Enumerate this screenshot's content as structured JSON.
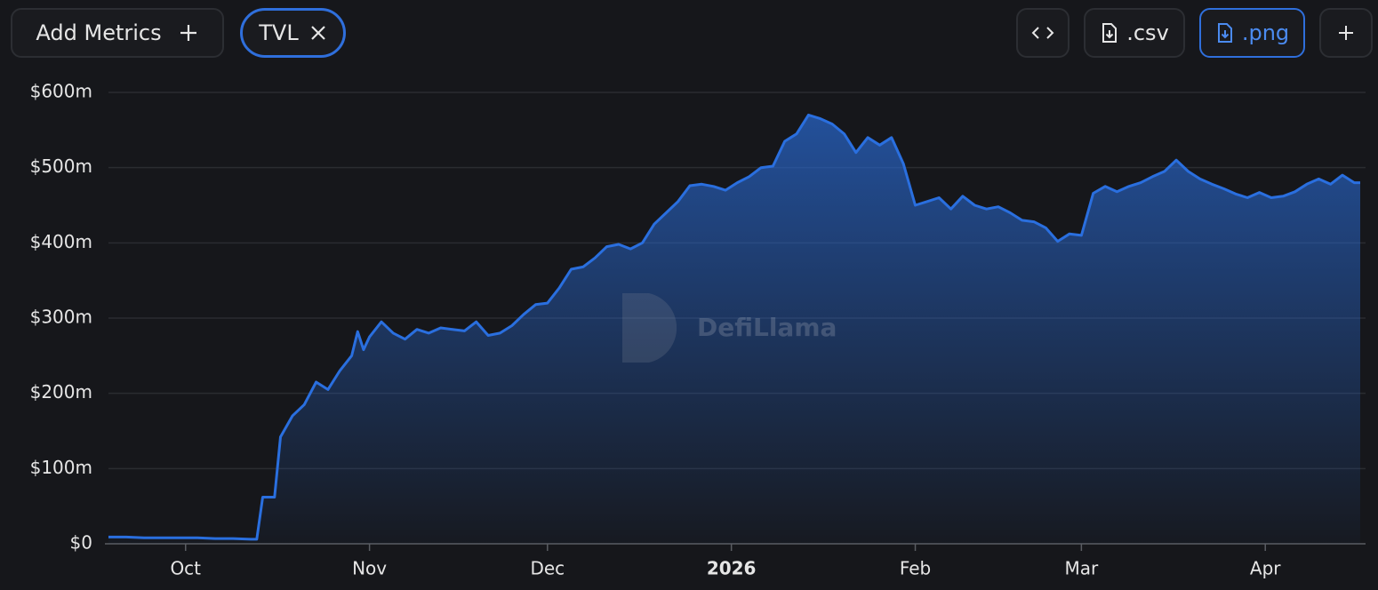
{
  "toolbar": {
    "add_metrics": "Add Metrics",
    "csv": ".csv",
    "png": ".png"
  },
  "watermark": "DefiLlama",
  "chart_data": {
    "type": "area",
    "x": [
      0,
      3,
      6,
      9,
      12,
      15,
      18,
      21,
      24,
      25,
      26,
      28,
      29,
      31,
      33,
      35,
      37,
      39,
      41,
      42,
      43,
      44,
      46,
      48,
      50,
      52,
      54,
      56,
      58,
      60,
      62,
      64,
      66,
      68,
      70,
      72,
      74,
      76,
      78,
      80,
      82,
      84,
      86,
      88,
      90,
      92,
      94,
      96,
      98,
      100,
      102,
      104,
      106,
      108,
      110,
      112,
      114,
      116,
      118,
      120,
      122,
      124,
      126,
      128,
      130,
      132,
      134,
      136,
      138,
      140,
      142,
      144,
      146,
      148,
      150,
      152,
      154,
      156,
      158,
      160,
      162,
      164,
      166,
      168,
      170,
      172,
      174,
      176,
      178,
      180,
      182,
      184,
      186,
      188,
      190,
      192,
      194,
      196,
      198,
      200,
      202,
      204,
      206,
      208,
      210,
      211
    ],
    "series": [
      {
        "name": "TVL",
        "color": "#2a6fdf",
        "values": [
          9,
          9,
          8,
          8,
          8,
          8,
          7,
          7,
          6,
          6,
          62,
          62,
          142,
          170,
          185,
          215,
          205,
          230,
          250,
          282,
          258,
          275,
          295,
          280,
          272,
          285,
          280,
          287,
          285,
          283,
          295,
          277,
          280,
          290,
          305,
          318,
          320,
          340,
          365,
          368,
          380,
          395,
          398,
          392,
          400,
          425,
          440,
          455,
          476,
          478,
          475,
          470,
          480,
          488,
          500,
          502,
          535,
          545,
          570,
          565,
          558,
          545,
          520,
          540,
          530,
          540,
          505,
          450,
          455,
          460,
          445,
          462,
          450,
          445,
          448,
          440,
          430,
          428,
          420,
          402,
          412,
          410,
          466,
          475,
          468,
          475,
          480,
          488,
          495,
          510,
          495,
          485,
          478,
          472,
          465,
          460,
          467,
          460,
          462,
          468,
          478,
          485,
          478,
          490,
          480,
          480
        ]
      }
    ],
    "xlim": [
      0,
      211
    ],
    "xticks": [
      {
        "value": 13,
        "label": "Oct"
      },
      {
        "value": 44,
        "label": "Nov"
      },
      {
        "value": 74,
        "label": "Dec"
      },
      {
        "value": 105,
        "label": "2026"
      },
      {
        "value": 136,
        "label": "Feb"
      },
      {
        "value": 164,
        "label": "Mar"
      },
      {
        "value": 195,
        "label": "Apr"
      }
    ],
    "ylim": [
      0,
      600
    ],
    "yticks": [
      {
        "value": 0,
        "label": "$0"
      },
      {
        "value": 100,
        "label": "$100m"
      },
      {
        "value": 200,
        "label": "$200m"
      },
      {
        "value": 300,
        "label": "$300m"
      },
      {
        "value": 400,
        "label": "$400m"
      },
      {
        "value": 500,
        "label": "$500m"
      },
      {
        "value": 600,
        "label": "$600m"
      }
    ],
    "grid": true
  }
}
